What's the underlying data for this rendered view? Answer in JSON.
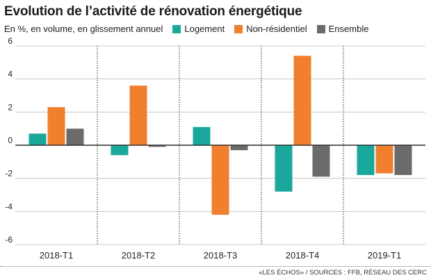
{
  "header": {
    "title": "Evolution de l’activité de rénovation énergétique",
    "subtitle": "En %, en volume, en glissement annuel"
  },
  "footer": {
    "source": "«LES ÉCHOS» / SOURCES : FFB, RÉSEAU DES CERC"
  },
  "colors": {
    "logement": "#1aa89c",
    "non_residentiel": "#f07f2e",
    "ensemble": "#6b6b6b"
  },
  "chart_data": {
    "type": "bar",
    "title": "Evolution de l’activité de rénovation énergétique",
    "subtitle": "En %, en volume, en glissement annuel",
    "categories": [
      "2018-T1",
      "2018-T2",
      "2018-T3",
      "2018-T4",
      "2019-T1"
    ],
    "series": [
      {
        "name": "Logement",
        "color": "#1aa89c",
        "values": [
          0.7,
          -0.6,
          1.1,
          -2.8,
          -1.8
        ]
      },
      {
        "name": "Non-résidentiel",
        "color": "#f07f2e",
        "values": [
          2.3,
          3.6,
          -4.2,
          5.4,
          -1.7
        ]
      },
      {
        "name": "Ensemble",
        "color": "#6b6b6b",
        "values": [
          1.0,
          -0.1,
          -0.3,
          -1.9,
          -1.8
        ]
      }
    ],
    "ylim": [
      -6,
      6
    ],
    "yticks": [
      6,
      4,
      2,
      0,
      -2,
      -4,
      -6
    ],
    "grid": "horizontal",
    "legend": "top"
  }
}
